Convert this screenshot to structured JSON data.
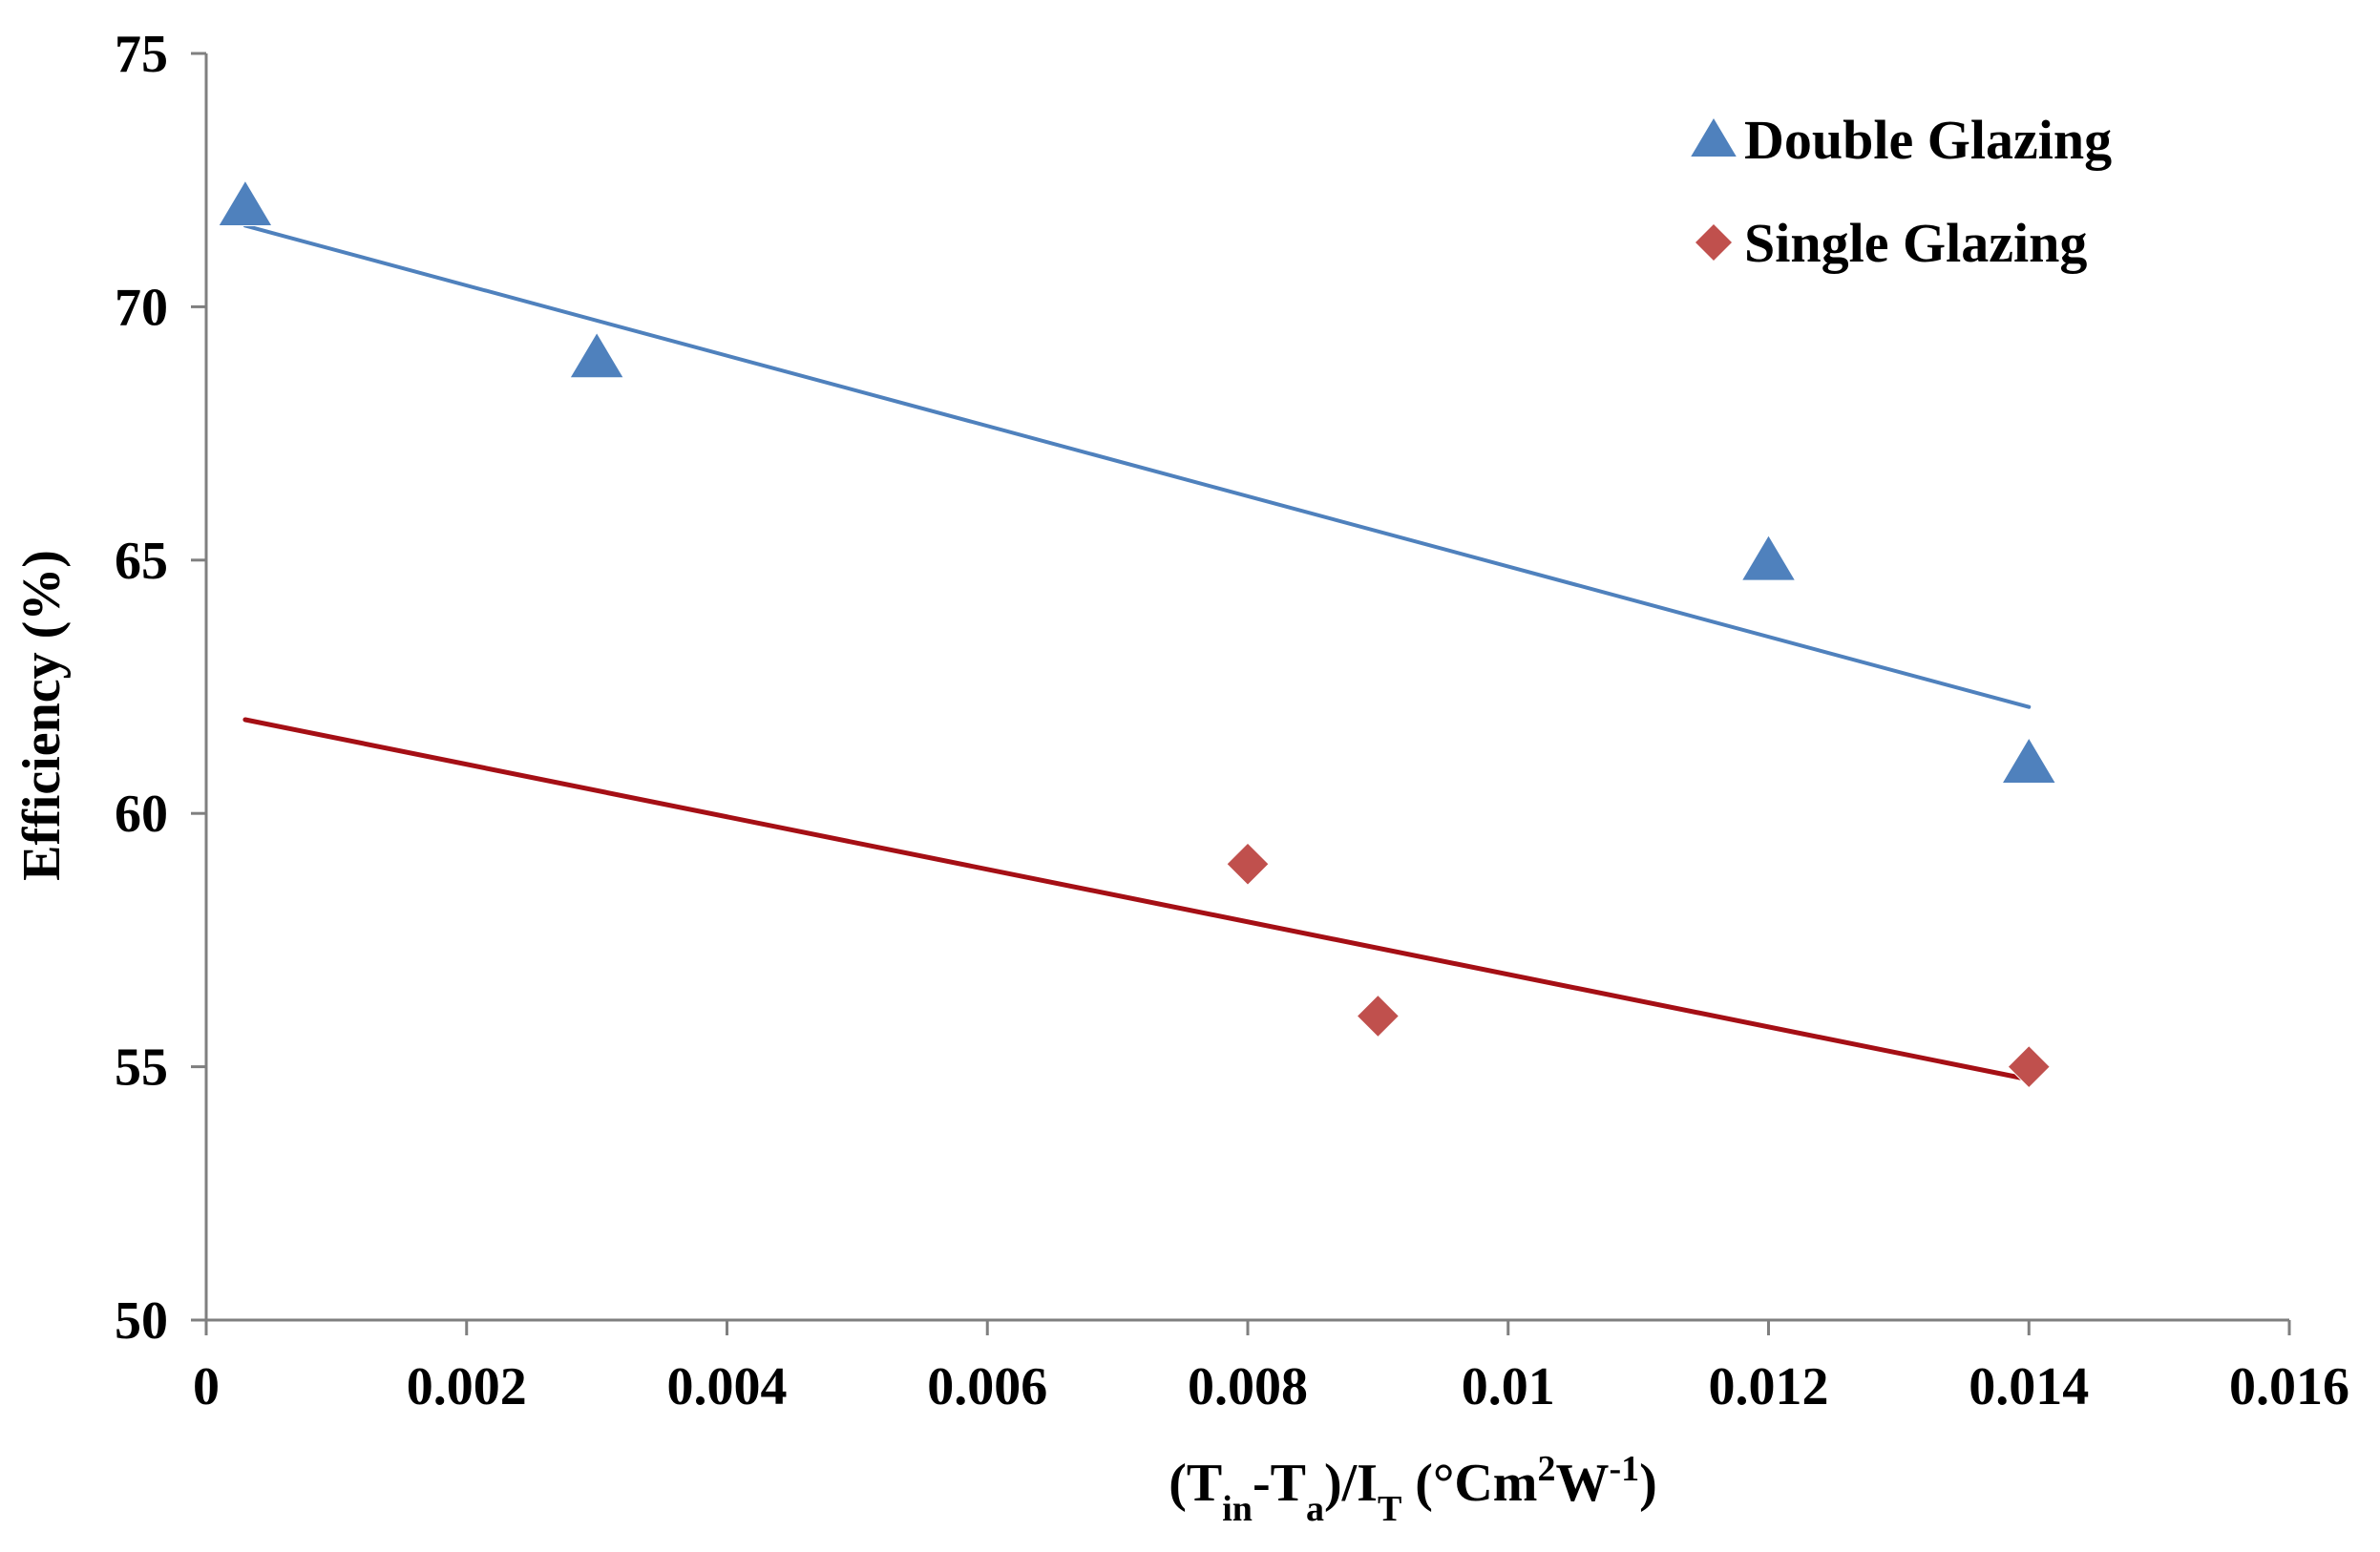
{
  "chart_data": {
    "type": "scatter",
    "title": "",
    "xlabel": "(Tin-Ta)/IT (°Cm²W-1)",
    "xlabel_parts": {
      "open": "(T",
      "sub1": "in",
      "mid": "-T",
      "sub2": "a",
      "slash": ")/I",
      "sub3": "T",
      "unit_open": " (°Cm",
      "sup1": "2",
      "unit_w": "W",
      "sup2": "-1",
      "close": ")"
    },
    "ylabel": "Efficiency (%)",
    "xlim": [
      0,
      0.016
    ],
    "ylim": [
      50,
      75
    ],
    "x_ticks": [
      0,
      0.002,
      0.004,
      0.006,
      0.008,
      0.01,
      0.012,
      0.014,
      0.016
    ],
    "x_tick_labels": [
      "0",
      "0.002",
      "0.004",
      "0.006",
      "0.008",
      "0.01",
      "0.012",
      "0.014",
      "0.016"
    ],
    "y_ticks": [
      50,
      55,
      60,
      65,
      70,
      75
    ],
    "y_tick_labels": [
      "50",
      "55",
      "60",
      "65",
      "70",
      "75"
    ],
    "grid": false,
    "legend_position": "top-right",
    "series": [
      {
        "name": "Double Glazing",
        "marker": "triangle",
        "color": "#4F81BD",
        "trend_color": "#4F81BD",
        "points": [
          {
            "x": 0.0003,
            "y": 72
          },
          {
            "x": 0.003,
            "y": 69
          },
          {
            "x": 0.012,
            "y": 65
          },
          {
            "x": 0.014,
            "y": 61
          }
        ],
        "trendline": {
          "x_start": 0.0003,
          "y_start": 71.6,
          "x_end": 0.014,
          "y_end": 62.1
        }
      },
      {
        "name": "Single Glazing",
        "marker": "diamond",
        "color": "#C0504D",
        "trend_color": "#A50F15",
        "points": [
          {
            "x": 0.008,
            "y": 59
          },
          {
            "x": 0.009,
            "y": 56
          },
          {
            "x": 0.014,
            "y": 55
          }
        ],
        "trendline": {
          "x_start": 0.0003,
          "y_start": 61.85,
          "x_end": 0.014,
          "y_end": 54.75
        }
      }
    ]
  }
}
